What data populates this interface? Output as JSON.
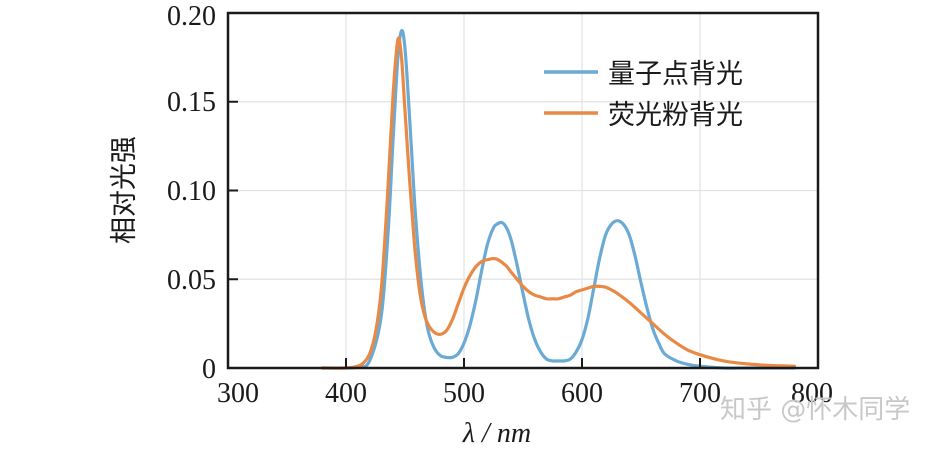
{
  "chart_data": {
    "type": "line",
    "title": "",
    "xlabel": "λ / nm",
    "ylabel": "相对光强",
    "xlim": [
      300,
      800
    ],
    "ylim": [
      0,
      0.2
    ],
    "xticks": [
      300,
      400,
      500,
      600,
      700,
      800
    ],
    "xtick_labels": [
      "300",
      "400",
      "500",
      "600",
      "700",
      "800"
    ],
    "yticks": [
      0,
      0.05,
      0.1,
      0.15,
      0.2
    ],
    "ytick_labels": [
      "0",
      "0.05",
      "0.10",
      "0.15",
      "0.20"
    ],
    "grid": true,
    "legend_position": "upper right",
    "series": [
      {
        "name": "量子点背光",
        "color": "#6aaad4",
        "x": [
          380,
          400,
          410,
          420,
          430,
          436,
          440,
          444,
          447,
          450,
          454,
          458,
          462,
          466,
          470,
          475,
          480,
          485,
          490,
          495,
          500,
          505,
          510,
          515,
          520,
          525,
          528,
          532,
          536,
          540,
          545,
          550,
          555,
          560,
          565,
          570,
          575,
          580,
          585,
          590,
          595,
          600,
          605,
          610,
          615,
          620,
          625,
          630,
          635,
          640,
          645,
          650,
          655,
          660,
          665,
          670,
          680,
          690,
          700,
          720,
          740,
          760,
          780
        ],
        "values": [
          0.0,
          0.0,
          0.0005,
          0.004,
          0.03,
          0.08,
          0.13,
          0.175,
          0.19,
          0.18,
          0.14,
          0.095,
          0.06,
          0.035,
          0.02,
          0.011,
          0.007,
          0.006,
          0.006,
          0.008,
          0.014,
          0.024,
          0.038,
          0.055,
          0.07,
          0.079,
          0.081,
          0.082,
          0.079,
          0.072,
          0.058,
          0.042,
          0.027,
          0.016,
          0.009,
          0.005,
          0.004,
          0.004,
          0.004,
          0.005,
          0.009,
          0.016,
          0.028,
          0.045,
          0.062,
          0.075,
          0.081,
          0.083,
          0.081,
          0.075,
          0.063,
          0.048,
          0.034,
          0.022,
          0.014,
          0.008,
          0.004,
          0.002,
          0.001,
          0.0,
          0.0,
          0.0,
          0.0
        ]
      },
      {
        "name": "荧光粉背光",
        "color": "#e88a45",
        "x": [
          380,
          400,
          410,
          415,
          420,
          425,
          430,
          435,
          440,
          444,
          447,
          450,
          454,
          458,
          462,
          466,
          470,
          475,
          480,
          485,
          490,
          495,
          500,
          505,
          510,
          515,
          520,
          527,
          535,
          540,
          545,
          550,
          555,
          560,
          565,
          570,
          575,
          580,
          585,
          590,
          595,
          600,
          605,
          610,
          615,
          620,
          625,
          630,
          640,
          650,
          660,
          670,
          680,
          690,
          700,
          710,
          720,
          730,
          740,
          750,
          760,
          770,
          780
        ],
        "values": [
          0.0,
          0.0,
          0.001,
          0.003,
          0.008,
          0.02,
          0.045,
          0.095,
          0.155,
          0.185,
          0.175,
          0.145,
          0.105,
          0.07,
          0.045,
          0.031,
          0.024,
          0.02,
          0.019,
          0.021,
          0.027,
          0.036,
          0.045,
          0.052,
          0.057,
          0.06,
          0.061,
          0.0615,
          0.058,
          0.054,
          0.05,
          0.046,
          0.043,
          0.041,
          0.04,
          0.039,
          0.039,
          0.039,
          0.04,
          0.041,
          0.043,
          0.044,
          0.045,
          0.046,
          0.046,
          0.0455,
          0.044,
          0.042,
          0.037,
          0.031,
          0.025,
          0.019,
          0.014,
          0.01,
          0.0075,
          0.0055,
          0.004,
          0.003,
          0.0023,
          0.0018,
          0.0014,
          0.0012,
          0.001
        ]
      }
    ]
  },
  "legend": {
    "items": [
      {
        "label": "量子点背光",
        "color": "#6aaad4"
      },
      {
        "label": "荧光粉背光",
        "color": "#e88a45"
      }
    ]
  },
  "watermark": "知乎 @怀木同学"
}
